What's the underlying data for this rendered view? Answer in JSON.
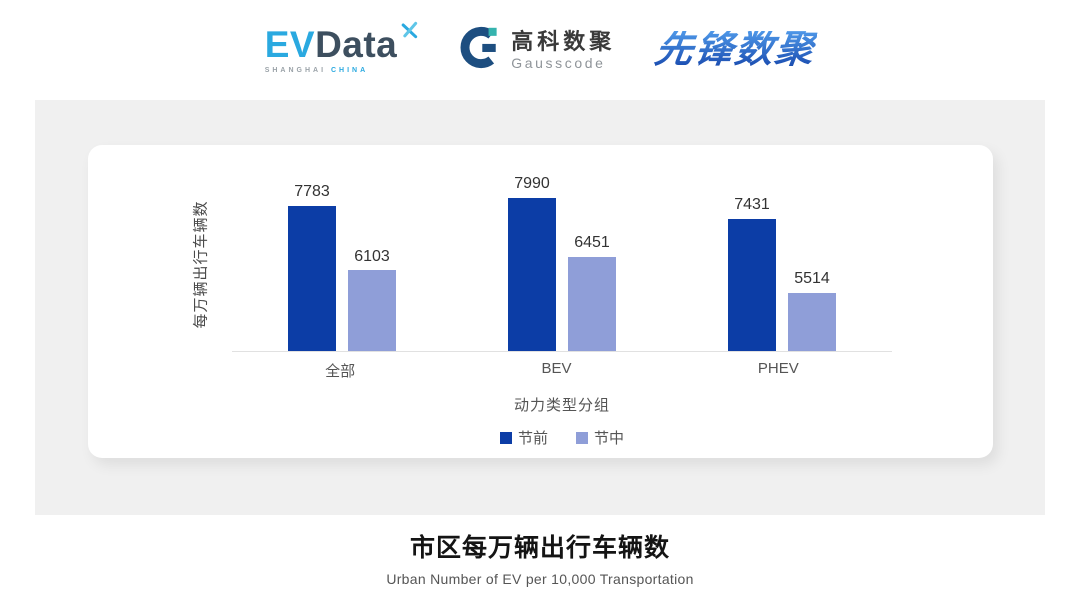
{
  "header": {
    "evdata": {
      "ev": "EV",
      "data": "Data",
      "sub_shanghai": "SHANGHAI",
      "sub_china": "CHINA"
    },
    "gausscode": {
      "name_cn": "高科数聚",
      "name_en": "Gausscode"
    },
    "xianfeng": {
      "name": "先锋数聚"
    }
  },
  "chart_data": {
    "type": "bar",
    "categories": [
      "全部",
      "BEV",
      "PHEV"
    ],
    "series": [
      {
        "name": "节前",
        "color": "#0c3da6",
        "values": [
          7783,
          7990,
          7431
        ]
      },
      {
        "name": "节中",
        "color": "#8f9ed8",
        "values": [
          6103,
          6451,
          5514
        ]
      }
    ],
    "xlabel": "动力类型分组",
    "ylabel": "每万辆出行车辆数",
    "ylim": [
      4000,
      8550
    ],
    "grid": false,
    "legend_position": "bottom",
    "value_labels": true
  },
  "footer": {
    "title": "市区每万辆出行车辆数",
    "subtitle": "Urban Number of EV per 10,000 Transportation"
  },
  "colors": {
    "series_pre": "#0c3da6",
    "series_mid": "#8f9ed8",
    "panel_bg": "#f0f0f0",
    "card_bg": "#ffffff",
    "axis_line": "#e1e1e1",
    "evdata_blue": "#2aa9e0",
    "evdata_dark": "#3d4f5f",
    "gausscode_navy": "#1d4e80",
    "gausscode_teal": "#35b3ae",
    "xianfeng_blue": "#2766cc"
  }
}
